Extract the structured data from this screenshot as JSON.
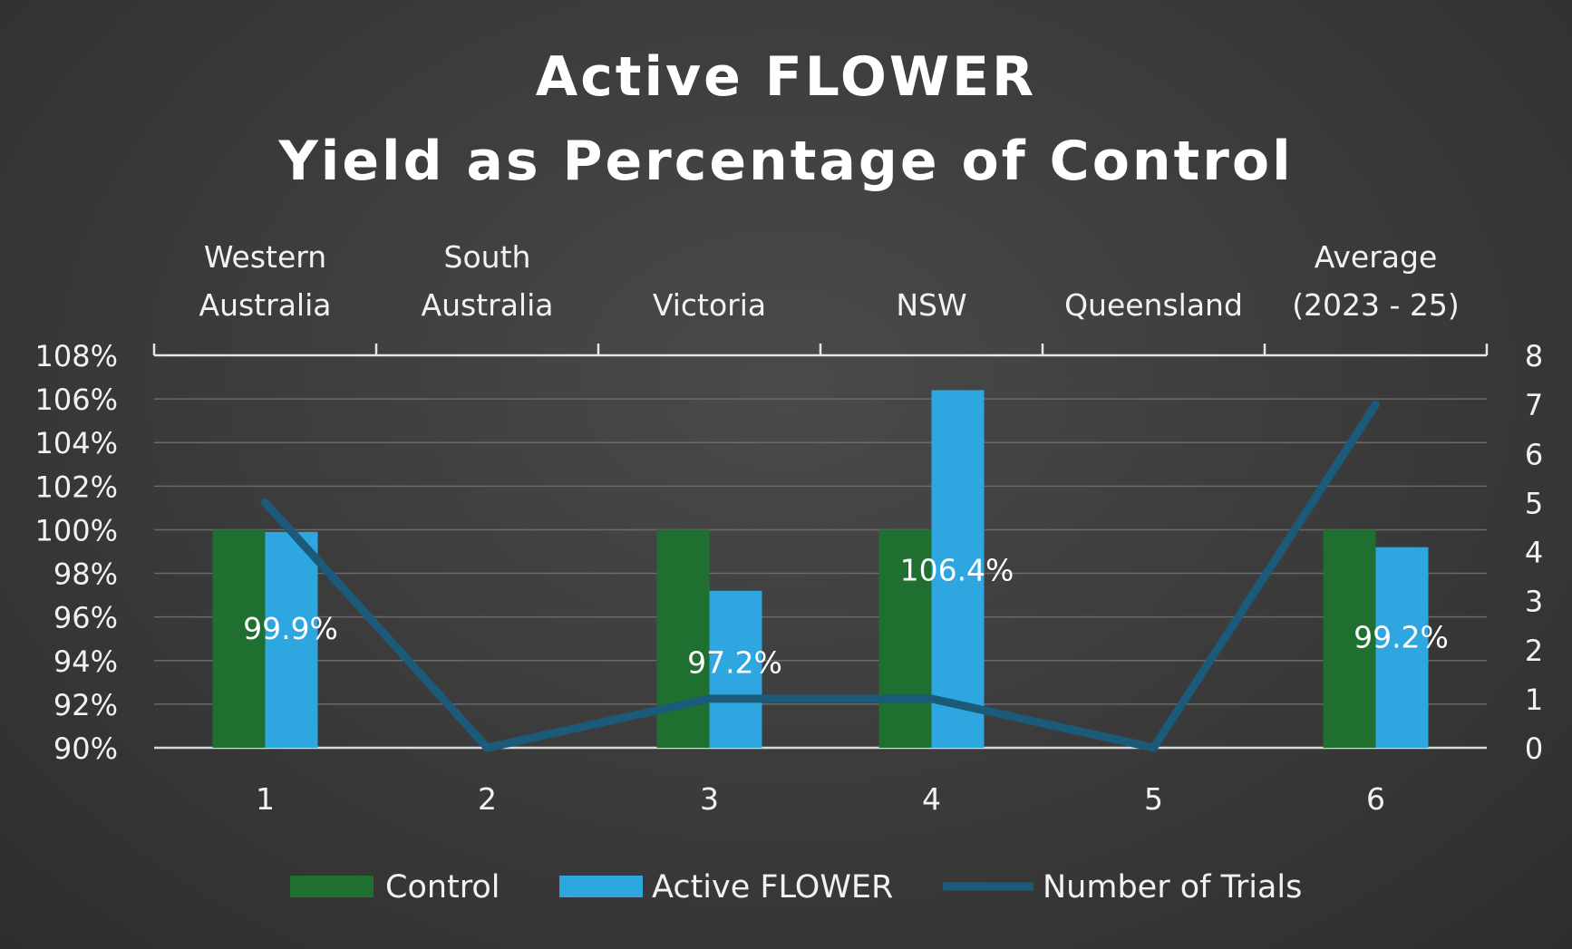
{
  "chart_data": {
    "type": "bar",
    "title": [
      "Active FLOWER",
      "Yield as Percentage of Control"
    ],
    "category_labels": [
      [
        "Western",
        "Australia"
      ],
      [
        "South",
        "Australia"
      ],
      [
        "Victoria"
      ],
      [
        "NSW"
      ],
      [
        "Queensland"
      ],
      [
        "Average",
        "(2023 - 25)"
      ]
    ],
    "x": [
      "1",
      "2",
      "3",
      "4",
      "5",
      "6"
    ],
    "series": [
      {
        "name": "Control",
        "type": "bar",
        "axis": "left",
        "color": "#1f6f31",
        "values": [
          100,
          null,
          100,
          100,
          null,
          100
        ]
      },
      {
        "name": "Active FLOWER",
        "type": "bar",
        "axis": "left",
        "color": "#2ea7e0",
        "values": [
          99.9,
          null,
          97.2,
          106.4,
          null,
          99.2
        ]
      },
      {
        "name": "Number of Trials",
        "type": "line",
        "axis": "right",
        "color": "#1c5a7a",
        "values": [
          5,
          0,
          1,
          1,
          0,
          7
        ]
      }
    ],
    "data_labels": [
      "99.9%",
      "",
      "97.2%",
      "106.4%",
      "",
      "99.2%"
    ],
    "y_left": {
      "min": 90,
      "max": 108,
      "step": 2,
      "ticks": [
        "90%",
        "92%",
        "94%",
        "96%",
        "98%",
        "100%",
        "102%",
        "104%",
        "106%",
        "108%"
      ]
    },
    "y_right": {
      "min": 0,
      "max": 8,
      "step": 1,
      "ticks": [
        "0",
        "1",
        "2",
        "3",
        "4",
        "5",
        "6",
        "7",
        "8"
      ]
    },
    "grid": true,
    "legend_position": "bottom"
  }
}
